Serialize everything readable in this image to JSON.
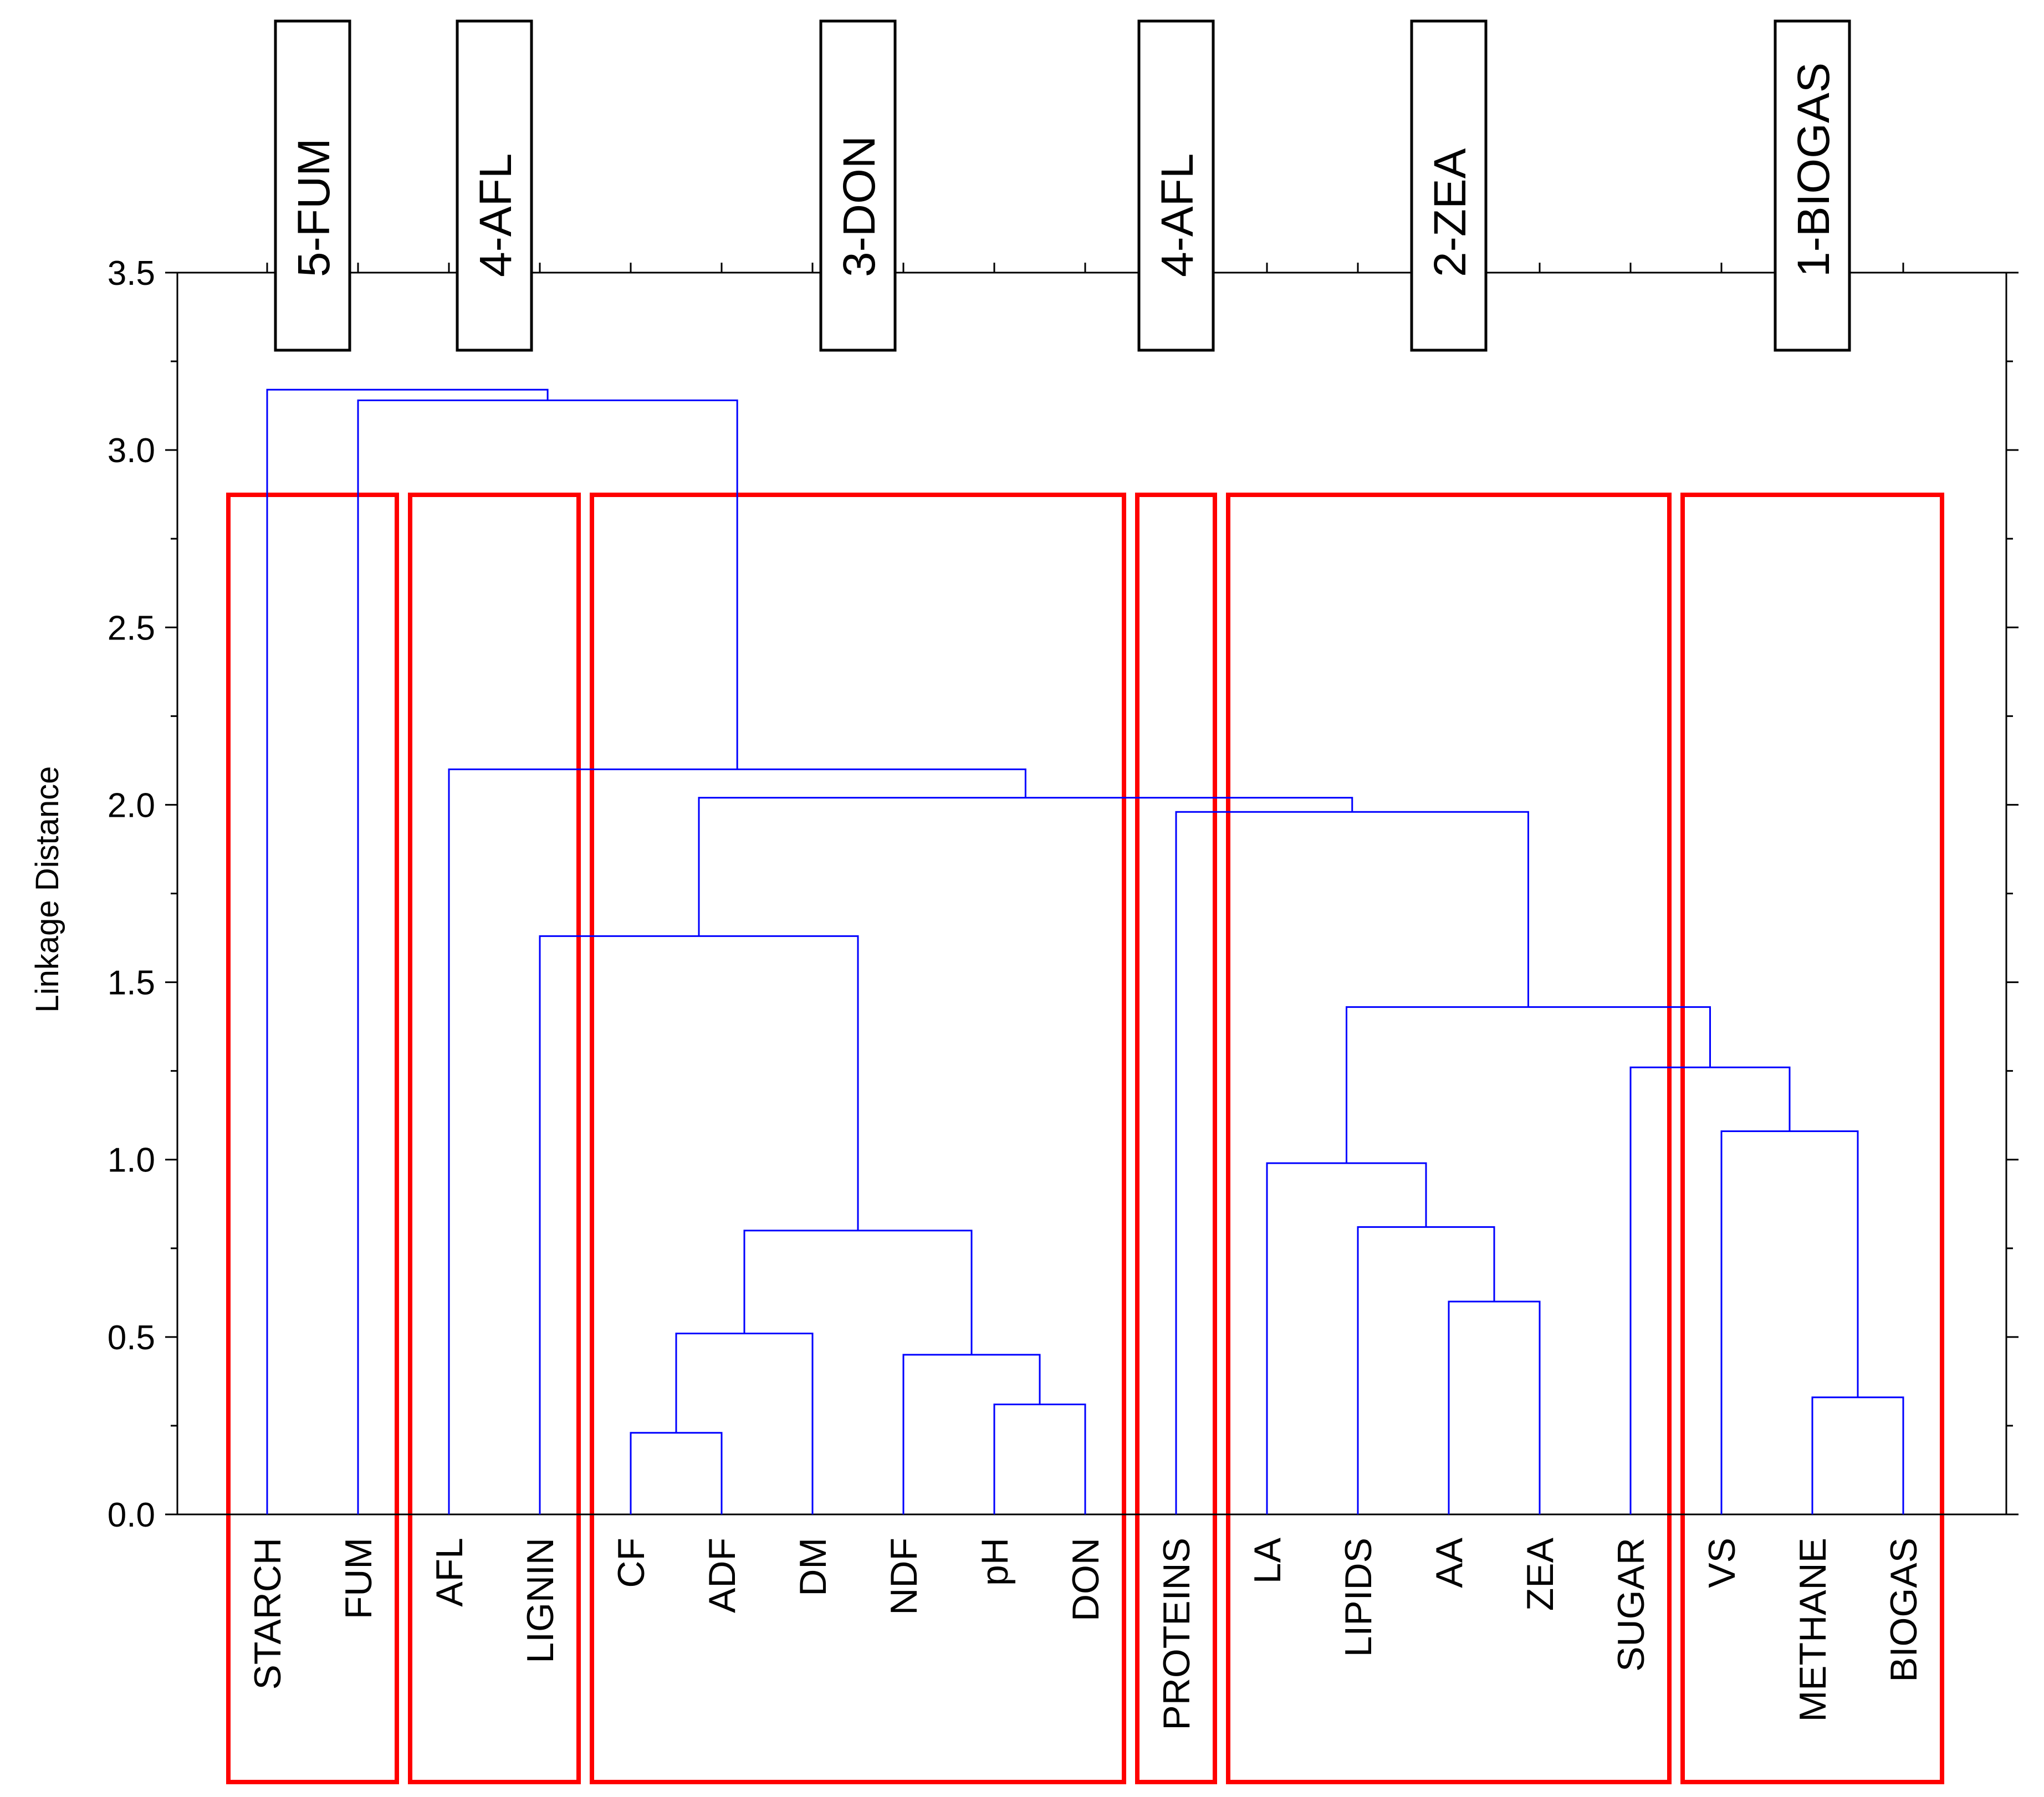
{
  "chart_data": {
    "type": "dendrogram",
    "title": "",
    "xlabel": "",
    "ylabel": "Linkage Distance",
    "ylim": [
      0,
      3.5
    ],
    "yticks": [
      "0.0",
      "0.5",
      "1.0",
      "1.5",
      "2.0",
      "2.5",
      "3.0",
      "3.5"
    ],
    "leaves": [
      "STARCH",
      "FUM",
      "AFL",
      "LIGNIN",
      "CF",
      "ADF",
      "DM",
      "NDF",
      "pH",
      "DON",
      "PROTEINS",
      "LA",
      "LIPIDS",
      "AA",
      "ZEA",
      "SUGAR",
      "VS",
      "METHANE",
      "BIOGAS"
    ],
    "merges": [
      {
        "children": [
          "CF",
          "ADF"
        ],
        "height": 0.23
      },
      {
        "children": [
          "pH",
          "DON"
        ],
        "height": 0.31
      },
      {
        "children": [
          "METHANE",
          "BIOGAS"
        ],
        "height": 0.33
      },
      {
        "children": [
          "NDF",
          "pH+DON"
        ],
        "height": 0.45
      },
      {
        "children": [
          "CF+ADF",
          "DM"
        ],
        "height": 0.51
      },
      {
        "children": [
          "AA",
          "ZEA"
        ],
        "height": 0.6
      },
      {
        "children": [
          "CF-DM",
          "NDF-DON"
        ],
        "height": 0.8
      },
      {
        "children": [
          "LIPIDS",
          "AA+ZEA"
        ],
        "height": 0.81
      },
      {
        "children": [
          "LA",
          "LIPIDS-ZEA"
        ],
        "height": 0.99
      },
      {
        "children": [
          "VS",
          "METHANE+BIOGAS"
        ],
        "height": 1.08
      },
      {
        "children": [
          "SUGAR",
          "VS-BIOGAS"
        ],
        "height": 1.26
      },
      {
        "children": [
          "LA-ZEA",
          "SUGAR-BIOGAS"
        ],
        "height": 1.43
      },
      {
        "children": [
          "LIGNIN",
          "CF-DON"
        ],
        "height": 1.63
      },
      {
        "children": [
          "PROTEINS",
          "LA-BIOGAS"
        ],
        "height": 1.98
      },
      {
        "children": [
          "LIGNIN-DON",
          "PROTEINS-BIOGAS"
        ],
        "height": 2.02
      },
      {
        "children": [
          "AFL",
          "LIGNIN-BIOGAS"
        ],
        "height": 2.1
      },
      {
        "children": [
          "FUM",
          "AFL-BIOGAS"
        ],
        "height": 3.14
      },
      {
        "children": [
          "STARCH",
          "FUM-BIOGAS"
        ],
        "height": 3.17
      }
    ],
    "groups": [
      {
        "label": "5-FUM",
        "leaves": [
          "STARCH",
          "FUM"
        ]
      },
      {
        "label": "4-AFL",
        "leaves": [
          "AFL",
          "LIGNIN"
        ]
      },
      {
        "label": "3-DON",
        "leaves": [
          "CF",
          "ADF",
          "DM",
          "NDF",
          "pH",
          "DON"
        ]
      },
      {
        "label": "4-AFL",
        "leaves": [
          "PROTEINS"
        ]
      },
      {
        "label": "2-ZEA",
        "leaves": [
          "LA",
          "LIPIDS",
          "AA",
          "ZEA",
          "SUGAR"
        ]
      },
      {
        "label": "1-BIOGAS",
        "leaves": [
          "VS",
          "METHANE",
          "BIOGAS"
        ]
      }
    ],
    "colors": {
      "tree": "#0000ff",
      "group_box": "#ff0000",
      "axis": "#000000",
      "label_box": "#000000"
    }
  }
}
